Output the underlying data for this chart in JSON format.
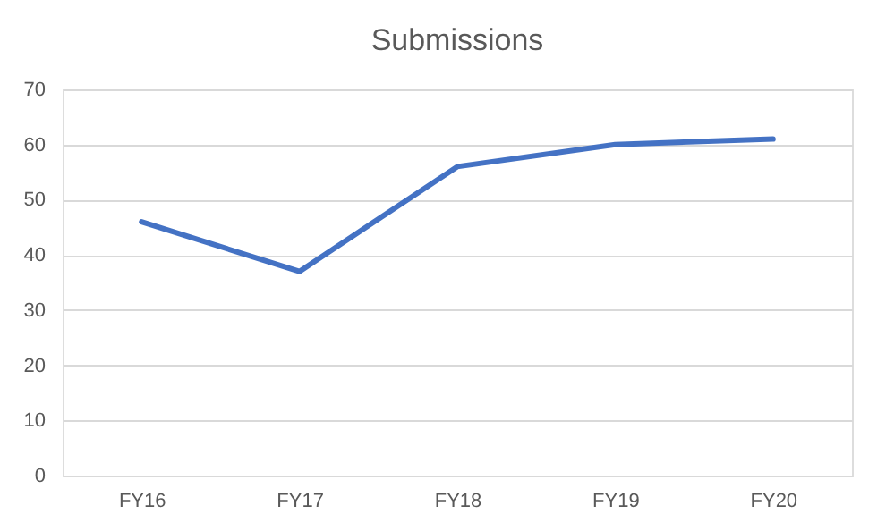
{
  "chart_data": {
    "type": "line",
    "title": "Submissions",
    "categories": [
      "FY16",
      "FY17",
      "FY18",
      "FY19",
      "FY20"
    ],
    "series": [
      {
        "color": "#4472c4",
        "values": [
          46,
          37,
          56,
          60,
          61
        ]
      }
    ],
    "ylim": [
      0,
      70
    ],
    "yticks": [
      0,
      10,
      20,
      30,
      40,
      50,
      60,
      70
    ],
    "grid": "y",
    "legend": false,
    "marker": "none",
    "line_style": "solid"
  }
}
